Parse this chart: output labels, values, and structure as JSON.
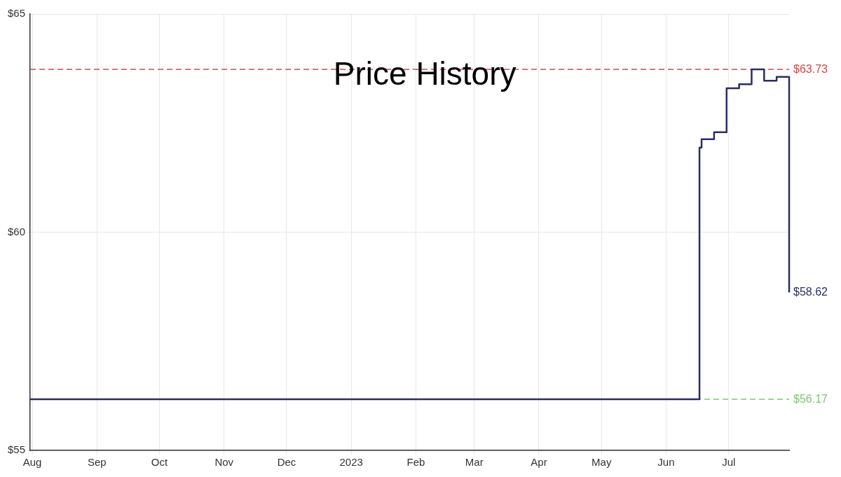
{
  "chart_data": {
    "type": "step",
    "title": "Price History",
    "x": [
      "2022-07-31",
      "2023-06-17",
      "2023-06-18",
      "2023-06-24",
      "2023-06-30",
      "2023-07-06",
      "2023-07-12",
      "2023-07-18",
      "2023-07-24",
      "2023-07-30"
    ],
    "series": [
      {
        "color": "#2b2d62",
        "values": [
          56.17,
          61.94,
          62.13,
          62.29,
          63.3,
          63.39,
          63.73,
          63.47,
          63.56,
          58.62
        ]
      }
    ],
    "xlim": [
      "2022-07-31",
      "2023-07-30"
    ],
    "xticks": [
      {
        "value": "2022-08-01",
        "label": "Aug"
      },
      {
        "value": "2022-09-01",
        "label": "Sep"
      },
      {
        "value": "2022-10-01",
        "label": "Oct"
      },
      {
        "value": "2022-11-01",
        "label": "Nov"
      },
      {
        "value": "2022-12-01",
        "label": "Dec"
      },
      {
        "value": "2023-01-01",
        "label": "2023"
      },
      {
        "value": "2023-02-01",
        "label": "Feb"
      },
      {
        "value": "2023-03-01",
        "label": "Mar"
      },
      {
        "value": "2023-04-01",
        "label": "Apr"
      },
      {
        "value": "2023-05-01",
        "label": "May"
      },
      {
        "value": "2023-06-01",
        "label": "Jun"
      },
      {
        "value": "2023-07-01",
        "label": "Jul"
      }
    ],
    "ylim": [
      55,
      65
    ],
    "yticks": [
      {
        "value": 55,
        "label": "$55"
      },
      {
        "value": 60,
        "label": "$60"
      },
      {
        "value": 65,
        "label": "$65"
      }
    ],
    "ref_lines": [
      {
        "axis": "y",
        "value": 63.73,
        "label": "$63.73",
        "color": "#cc4b4b",
        "line_style": "dashed"
      },
      {
        "axis": "y",
        "value": 56.17,
        "label": "$56.17",
        "color": "#7cc674",
        "line_style": "dashed"
      }
    ],
    "annotations": [
      {
        "text": "$58.62",
        "x": "2023-07-30",
        "y": 58.62
      }
    ],
    "grid": true,
    "legend": false,
    "marker": "none",
    "line_style": "solid"
  }
}
